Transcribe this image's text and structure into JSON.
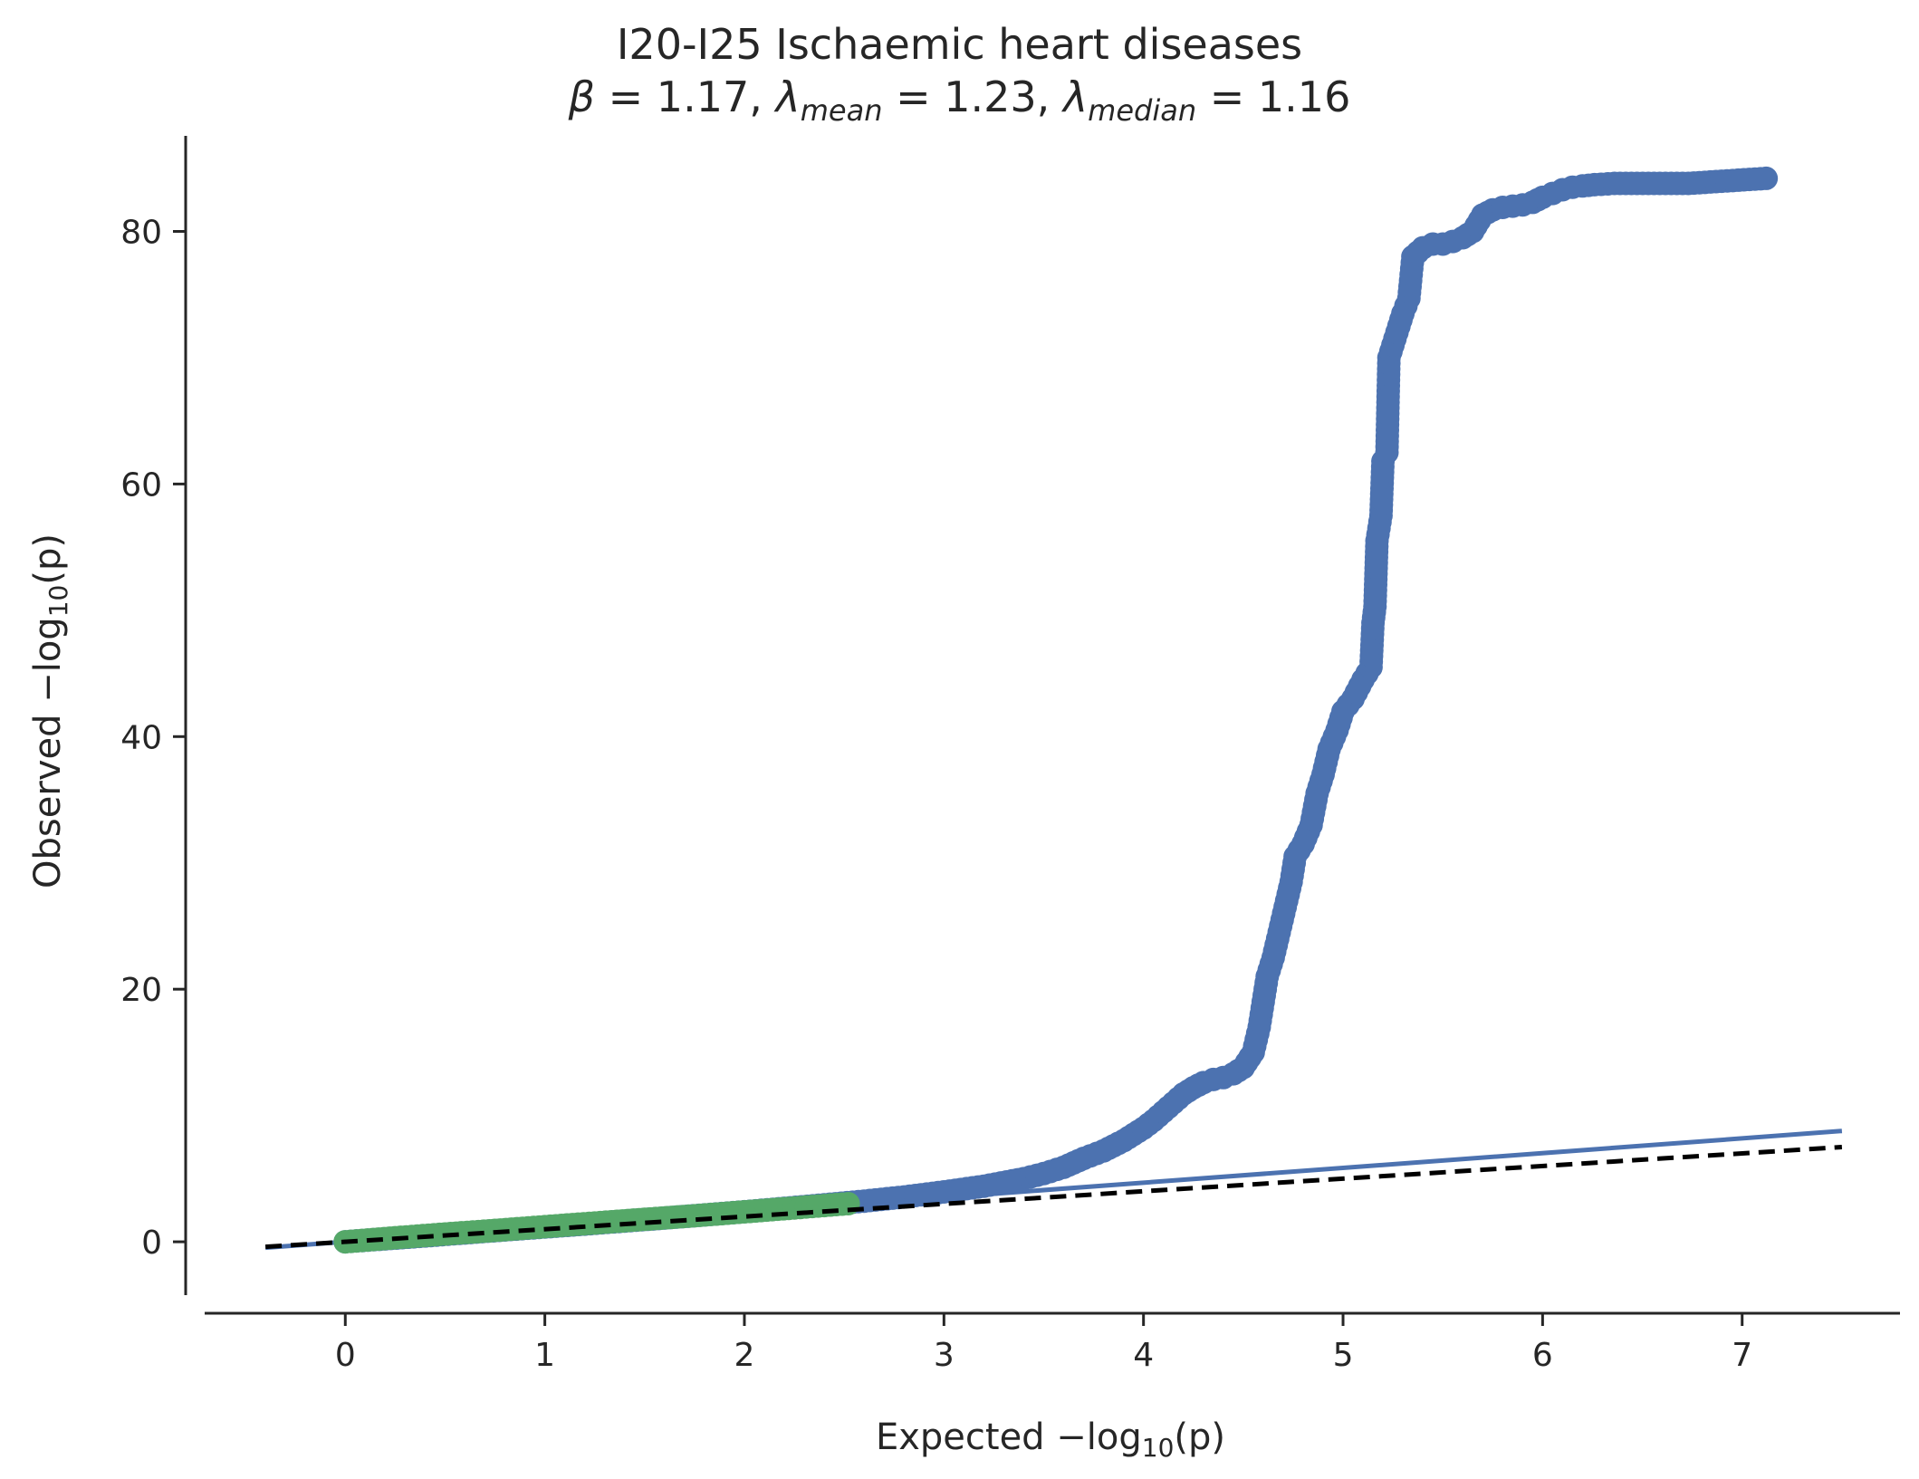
{
  "chart_data": {
    "type": "scatter",
    "title": "I20-I25 Ischaemic heart diseases",
    "subtitle": {
      "beta_symbol": "β",
      "beta_value": "= 1.17,",
      "lambda_symbol": "λ",
      "lambda_mean_sub": "mean",
      "lambda_mean_value": "= 1.23,",
      "lambda_median_sub": "median",
      "lambda_median_value": "= 1.16"
    },
    "xlabel": {
      "prefix": "Expected −log",
      "sub": "10",
      "suffix": "(p)"
    },
    "ylabel": {
      "prefix": "Observed −log",
      "sub": "10",
      "suffix": "(p)"
    },
    "xlim": [
      -0.8,
      7.8
    ],
    "ylim": [
      -5.3,
      89
    ],
    "xticks": [
      0,
      1,
      2,
      3,
      4,
      5,
      6,
      7
    ],
    "yticks": [
      0,
      20,
      40,
      60,
      80
    ],
    "grid": false,
    "colors": {
      "all_points": "#4c72b0",
      "null_points": "#55a868",
      "fit_line": "#4c72b0",
      "identity_line": "#000000",
      "axes": "#262626"
    },
    "series": [
      {
        "role": "all variants",
        "color": "#4c72b0",
        "points": [
          [
            0.0,
            0.0
          ],
          [
            0.2,
            0.23
          ],
          [
            0.4,
            0.46
          ],
          [
            0.6,
            0.7
          ],
          [
            0.8,
            0.94
          ],
          [
            1.0,
            1.17
          ],
          [
            1.2,
            1.4
          ],
          [
            1.4,
            1.64
          ],
          [
            1.6,
            1.88
          ],
          [
            1.8,
            2.13
          ],
          [
            2.0,
            2.38
          ],
          [
            2.2,
            2.65
          ],
          [
            2.4,
            2.93
          ],
          [
            2.6,
            3.22
          ],
          [
            2.8,
            3.55
          ],
          [
            3.0,
            3.95
          ],
          [
            3.2,
            4.4
          ],
          [
            3.4,
            5.0
          ],
          [
            3.5,
            5.4
          ],
          [
            3.6,
            5.9
          ],
          [
            3.7,
            6.6
          ],
          [
            3.8,
            7.2
          ],
          [
            3.85,
            7.6
          ],
          [
            3.9,
            8.0
          ],
          [
            3.95,
            8.5
          ],
          [
            4.0,
            9.0
          ],
          [
            4.05,
            9.6
          ],
          [
            4.1,
            10.3
          ],
          [
            4.15,
            11.0
          ],
          [
            4.2,
            11.7
          ],
          [
            4.25,
            12.2
          ],
          [
            4.3,
            12.6
          ],
          [
            4.35,
            12.85
          ],
          [
            4.4,
            13.0
          ],
          [
            4.45,
            13.3
          ],
          [
            4.5,
            13.8
          ],
          [
            4.55,
            15.0
          ],
          [
            4.58,
            17.0
          ],
          [
            4.6,
            19.0
          ],
          [
            4.62,
            21.0
          ],
          [
            4.65,
            22.5
          ],
          [
            4.68,
            24.5
          ],
          [
            4.71,
            26.5
          ],
          [
            4.74,
            28.5
          ],
          [
            4.76,
            30.5
          ],
          [
            4.8,
            31.5
          ],
          [
            4.84,
            33.0
          ],
          [
            4.87,
            35.5
          ],
          [
            4.9,
            37.0
          ],
          [
            4.93,
            39.0
          ],
          [
            4.97,
            40.5
          ],
          [
            5.0,
            42.0
          ],
          [
            5.05,
            43.0
          ],
          [
            5.1,
            44.5
          ],
          [
            5.14,
            45.5
          ],
          [
            5.15,
            49.0
          ],
          [
            5.16,
            50.3
          ],
          [
            5.17,
            55.5
          ],
          [
            5.18,
            56.5
          ],
          [
            5.19,
            57.5
          ],
          [
            5.2,
            61.8
          ],
          [
            5.22,
            62.5
          ],
          [
            5.23,
            70.0
          ],
          [
            5.25,
            71.0
          ],
          [
            5.27,
            72.0
          ],
          [
            5.3,
            73.5
          ],
          [
            5.33,
            74.7
          ],
          [
            5.35,
            78.0
          ],
          [
            5.4,
            78.7
          ],
          [
            5.45,
            79.0
          ],
          [
            5.5,
            79.0
          ],
          [
            5.55,
            79.2
          ],
          [
            5.6,
            79.5
          ],
          [
            5.65,
            80.0
          ],
          [
            5.7,
            81.3
          ],
          [
            5.75,
            81.7
          ],
          [
            5.8,
            81.9
          ],
          [
            5.85,
            82.0
          ],
          [
            5.9,
            82.1
          ],
          [
            5.95,
            82.3
          ],
          [
            6.0,
            82.7
          ],
          [
            6.05,
            83.0
          ],
          [
            6.1,
            83.3
          ],
          [
            6.15,
            83.5
          ],
          [
            6.2,
            83.6
          ],
          [
            6.26,
            83.7
          ],
          [
            6.36,
            83.8
          ],
          [
            6.53,
            83.8
          ],
          [
            6.73,
            83.8
          ],
          [
            7.12,
            84.2
          ]
        ]
      },
      {
        "role": "null variants",
        "color": "#55a868",
        "points": [
          [
            0.0,
            0.0
          ],
          [
            0.25,
            0.32
          ],
          [
            0.5,
            0.62
          ],
          [
            0.75,
            0.9
          ],
          [
            1.0,
            1.2
          ],
          [
            1.25,
            1.49
          ],
          [
            1.5,
            1.78
          ],
          [
            1.75,
            2.06
          ],
          [
            2.0,
            2.37
          ],
          [
            2.25,
            2.68
          ],
          [
            2.52,
            3.02
          ]
        ]
      }
    ],
    "lines": [
      {
        "role": "fitted",
        "slope": 1.17,
        "x_range": [
          -0.4,
          7.5
        ],
        "color": "#4c72b0",
        "style": "solid"
      },
      {
        "role": "expected",
        "slope": 1.0,
        "x_range": [
          -0.4,
          7.5
        ],
        "color": "#000000",
        "style": "dashed"
      }
    ]
  }
}
